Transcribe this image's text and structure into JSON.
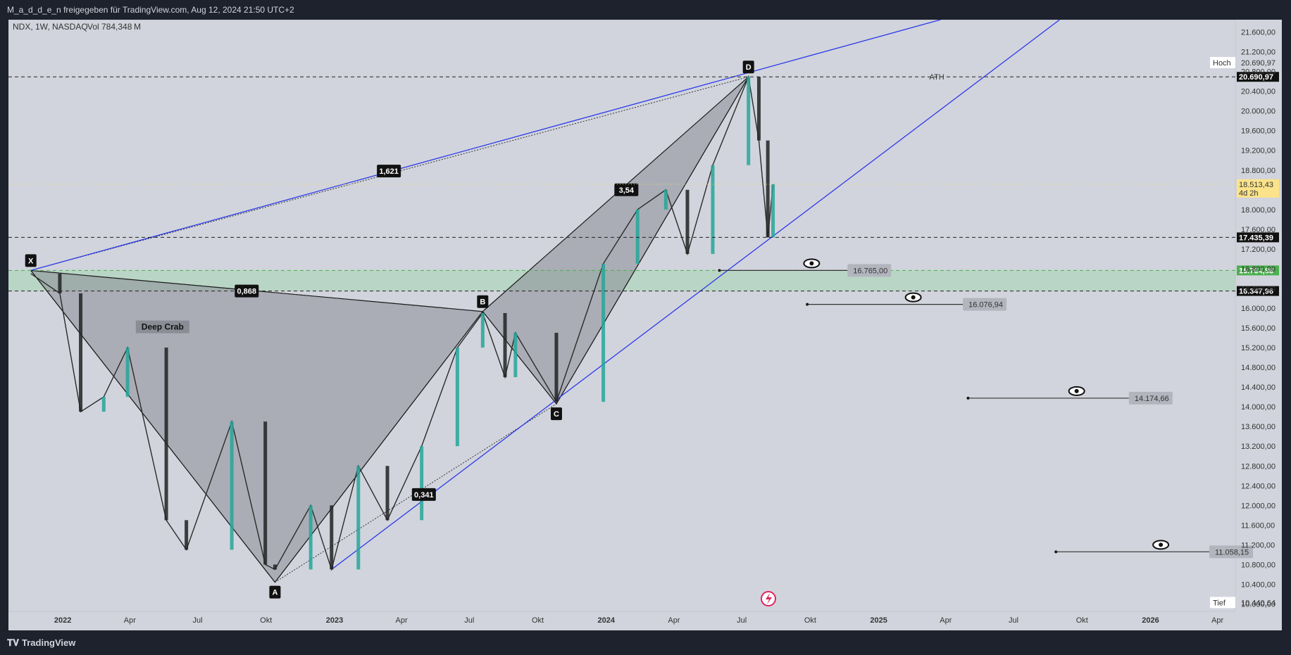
{
  "header": {
    "caption": "M_a_d_d_e_n freigegeben für TradingView.com, Aug 12, 2024 21:50 UTC+2"
  },
  "symbol_info": {
    "text": "NDX, 1W, NASDAQ",
    "vol_label": "Vol",
    "vol_value": "784,348",
    "vol_unit": "M"
  },
  "footer": {
    "brand": "TradingView",
    "brand_icon": "tradingview-logo-icon"
  },
  "colors": {
    "background": "#d1d4dc",
    "up": "#26a69a",
    "down": "#222222",
    "trendline": "#2c3aea",
    "zone": "#a8d5b5",
    "pattern_fill": "#8a8d95"
  },
  "chart_data": {
    "type": "candlestick",
    "symbol": "NDX",
    "timeframe": "1W",
    "exchange": "NASDAQ",
    "ylim": [
      9850,
      21850
    ],
    "y_scale": "linear",
    "y_ticks": [
      10000,
      10400,
      10800,
      11200,
      11600,
      12000,
      12400,
      12800,
      13200,
      13600,
      14000,
      14400,
      14800,
      15200,
      15600,
      16000,
      16400,
      16800,
      17200,
      17600,
      18000,
      18400,
      18800,
      19200,
      19600,
      20000,
      20400,
      20800,
      21200,
      21600
    ],
    "y_tick_labels": [
      "10.000,00",
      "10.400,00",
      "10.800,00",
      "11.200,00",
      "11.600,00",
      "12.000,00",
      "12.400,00",
      "12.800,00",
      "13.200,00",
      "13.600,00",
      "14.000,00",
      "14.400,00",
      "14.800,00",
      "15.200,00",
      "15.600,00",
      "16.000,00",
      "16.400,00",
      "16.800,00",
      "17.200,00",
      "17.600,00",
      "18.000,00",
      "18.400,00",
      "18.800,00",
      "19.200,00",
      "19.600,00",
      "20.000,00",
      "20.400,00",
      "20.800,00",
      "21.200,00",
      "21.600,00"
    ],
    "x_range": [
      "2021-10-20",
      "2026-04-25"
    ],
    "x_ticks": [
      {
        "date": "2022-01-01",
        "label": "2022",
        "bold": true
      },
      {
        "date": "2022-04-01",
        "label": "Apr",
        "bold": false
      },
      {
        "date": "2022-07-01",
        "label": "Jul",
        "bold": false
      },
      {
        "date": "2022-10-01",
        "label": "Okt",
        "bold": false
      },
      {
        "date": "2023-01-01",
        "label": "2023",
        "bold": true
      },
      {
        "date": "2023-04-01",
        "label": "Apr",
        "bold": false
      },
      {
        "date": "2023-07-01",
        "label": "Jul",
        "bold": false
      },
      {
        "date": "2023-10-01",
        "label": "Okt",
        "bold": false
      },
      {
        "date": "2024-01-01",
        "label": "2024",
        "bold": true
      },
      {
        "date": "2024-04-01",
        "label": "Apr",
        "bold": false
      },
      {
        "date": "2024-07-01",
        "label": "Jul",
        "bold": false
      },
      {
        "date": "2024-10-01",
        "label": "Okt",
        "bold": false
      },
      {
        "date": "2025-01-01",
        "label": "2025",
        "bold": true
      },
      {
        "date": "2025-04-01",
        "label": "Apr",
        "bold": false
      },
      {
        "date": "2025-07-01",
        "label": "Jul",
        "bold": false
      },
      {
        "date": "2025-10-01",
        "label": "Okt",
        "bold": false
      },
      {
        "date": "2026-01-01",
        "label": "2026",
        "bold": true
      },
      {
        "date": "2026-04-01",
        "label": "Apr",
        "bold": false
      }
    ],
    "price_path": [
      {
        "date": "2021-11-19",
        "price": 16700
      },
      {
        "date": "2021-12-28",
        "price": 16300
      },
      {
        "date": "2022-01-25",
        "price": 13900
      },
      {
        "date": "2022-02-25",
        "price": 14200
      },
      {
        "date": "2022-03-29",
        "price": 15200
      },
      {
        "date": "2022-05-20",
        "price": 11700
      },
      {
        "date": "2022-06-16",
        "price": 11100
      },
      {
        "date": "2022-08-16",
        "price": 13700
      },
      {
        "date": "2022-09-30",
        "price": 10800
      },
      {
        "date": "2022-10-13",
        "price": 10700
      },
      {
        "date": "2022-11-30",
        "price": 12000
      },
      {
        "date": "2022-12-28",
        "price": 10700
      },
      {
        "date": "2023-02-02",
        "price": 12800
      },
      {
        "date": "2023-03-13",
        "price": 11700
      },
      {
        "date": "2023-04-28",
        "price": 13200
      },
      {
        "date": "2023-06-15",
        "price": 15200
      },
      {
        "date": "2023-07-19",
        "price": 15900
      },
      {
        "date": "2023-08-18",
        "price": 14600
      },
      {
        "date": "2023-09-01",
        "price": 15500
      },
      {
        "date": "2023-10-26",
        "price": 14100
      },
      {
        "date": "2023-12-28",
        "price": 16900
      },
      {
        "date": "2024-02-12",
        "price": 18000
      },
      {
        "date": "2024-03-21",
        "price": 18400
      },
      {
        "date": "2024-04-19",
        "price": 17100
      },
      {
        "date": "2024-05-23",
        "price": 18900
      },
      {
        "date": "2024-07-10",
        "price": 20690.97
      },
      {
        "date": "2024-07-24",
        "price": 19400
      },
      {
        "date": "2024-08-05",
        "price": 17435.39
      },
      {
        "date": "2024-08-12",
        "price": 18513.43
      }
    ],
    "pattern": {
      "name": "Deep Crab",
      "points": [
        {
          "label": "X",
          "date": "2021-11-19",
          "price": 16764.86
        },
        {
          "label": "A",
          "date": "2022-10-13",
          "price": 10440.64
        },
        {
          "label": "B",
          "date": "2023-07-19",
          "price": 15932.05
        },
        {
          "label": "C",
          "date": "2023-10-26",
          "price": 14058.0
        },
        {
          "label": "D",
          "date": "2024-07-10",
          "price": 20690.97
        }
      ],
      "ratios": [
        {
          "text": "0,868",
          "date": "2022-09-05",
          "price": 16347.96
        },
        {
          "text": "0,341",
          "date": "2023-05-01",
          "price": 12220
        },
        {
          "text": "3,54",
          "date": "2024-01-28",
          "price": 18400
        },
        {
          "text": "1,621",
          "date": "2023-03-15",
          "price": 18780
        }
      ]
    },
    "trendlines": [
      {
        "from": {
          "date": "2021-11-19",
          "price": 16764.86
        },
        "to": {
          "date": "2025-03-25",
          "price": 21850
        }
      },
      {
        "from": {
          "date": "2022-12-28",
          "price": 10700
        },
        "to": {
          "date": "2025-09-01",
          "price": 21850
        }
      }
    ],
    "horizontal_lines": [
      {
        "price": 20690.97,
        "label": "20.690,97",
        "text": "ATH",
        "style": "dashed"
      },
      {
        "price": 17435.39,
        "label": "17.435,39",
        "style": "dashed"
      },
      {
        "price": 16764.86,
        "label": "16.764,86",
        "style": "dashed-green"
      },
      {
        "price": 16347.96,
        "label": "16.347,96",
        "style": "dashed"
      }
    ],
    "zone": {
      "from": 16347.96,
      "to": 16764.86
    },
    "targets": [
      {
        "value": 16765.0,
        "label": "16.765,00",
        "from": "2024-06-01",
        "to": "2024-11-20"
      },
      {
        "value": 16076.94,
        "label": "16.076,94",
        "from": "2024-09-27",
        "to": "2025-04-24"
      },
      {
        "value": 14174.66,
        "label": "14.174,66",
        "from": "2025-05-01",
        "to": "2025-12-03"
      },
      {
        "value": 11058.15,
        "label": "11.058,15",
        "from": "2025-08-27",
        "to": "2026-03-21"
      }
    ],
    "price_tags": {
      "high": {
        "text": "Hoch",
        "value": "20.690,97"
      },
      "low": {
        "text": "Tief",
        "value": "10.440,64"
      },
      "current": {
        "value": "18.513,43",
        "countdown": "4d 2h",
        "price": 18513.43
      }
    },
    "annotations": [
      "Deep Crab",
      "ATH"
    ]
  }
}
